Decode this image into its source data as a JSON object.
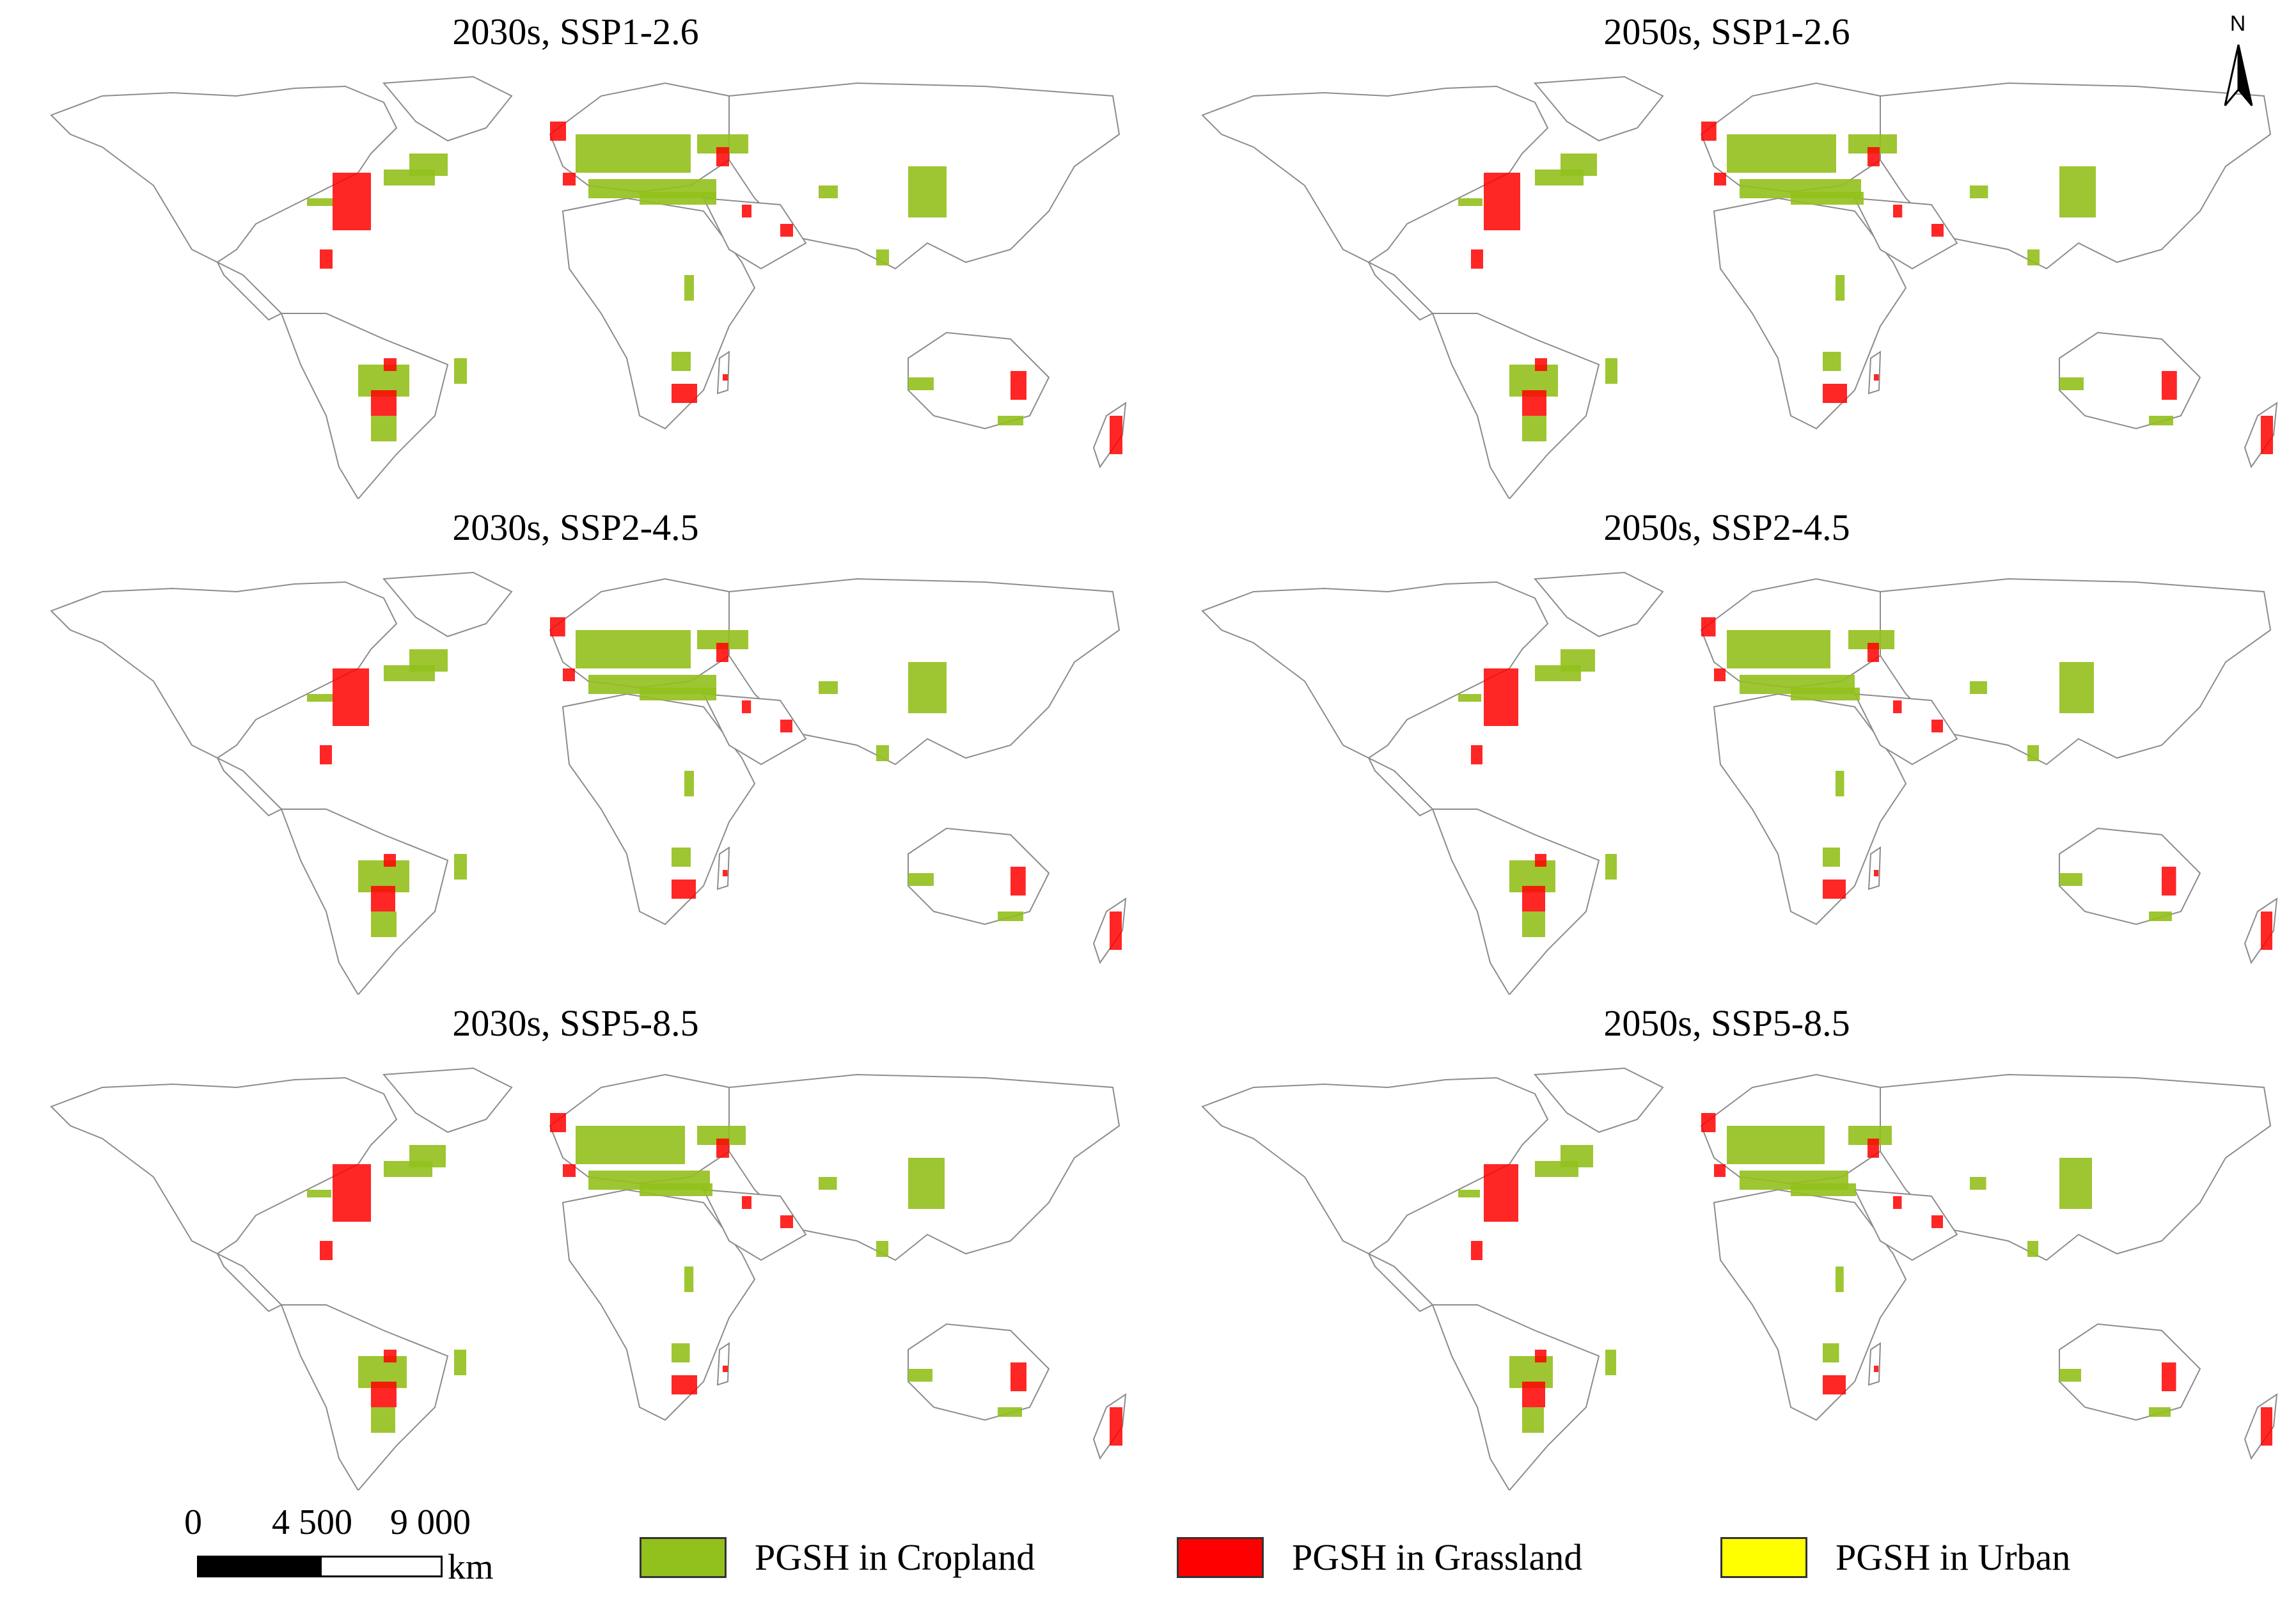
{
  "panels": [
    {
      "title": "2030s, SSP1-2.6",
      "col": 0,
      "row": 0,
      "grass": 1.0,
      "crop": 1.0
    },
    {
      "title": "2050s, SSP1-2.6",
      "col": 1,
      "row": 0,
      "grass": 0.95,
      "crop": 0.95
    },
    {
      "title": "2030s, SSP2-4.5",
      "col": 0,
      "row": 1,
      "grass": 0.95,
      "crop": 1.0
    },
    {
      "title": "2050s, SSP2-4.5",
      "col": 1,
      "row": 1,
      "grass": 0.9,
      "crop": 0.9
    },
    {
      "title": "2030s, SSP5-8.5",
      "col": 0,
      "row": 2,
      "grass": 1.0,
      "crop": 0.95
    },
    {
      "title": "2050s, SSP5-8.5",
      "col": 1,
      "row": 2,
      "grass": 0.9,
      "crop": 0.85
    }
  ],
  "north_arrow": {
    "label": "N"
  },
  "scale_bar": {
    "ticks": [
      "0",
      "4 500",
      "9 000"
    ],
    "unit": "km"
  },
  "legend": [
    {
      "label": "PGSH in Cropland",
      "color": "#92c01c"
    },
    {
      "label": "PGSH in Grassland",
      "color": "#ff0000"
    },
    {
      "label": "PGSH in Urban",
      "color": "#ffff00"
    }
  ],
  "colors": {
    "country_border": "#8c8c8c",
    "land_fill": "#ffffff"
  }
}
